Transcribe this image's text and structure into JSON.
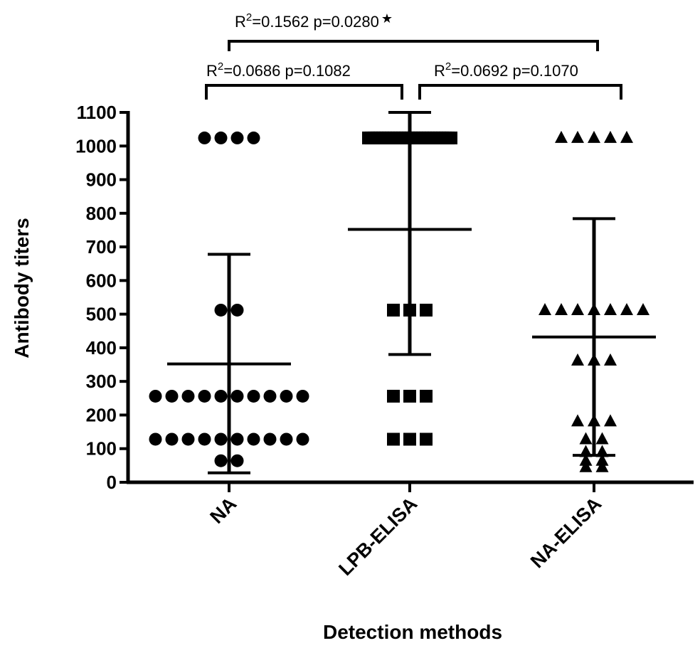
{
  "chart_data": {
    "type": "scatter",
    "xlabel": "Detection methods",
    "ylabel": "Antibody titers",
    "ylim": [
      0,
      1100
    ],
    "yticks": [
      0,
      100,
      200,
      300,
      400,
      500,
      600,
      700,
      800,
      900,
      1000,
      1100
    ],
    "categories": [
      "NA",
      "LPB-ELISA",
      "NA-ELISA"
    ],
    "series": [
      {
        "category": "NA",
        "marker": "circle",
        "points": [
          {
            "value": 1024,
            "count": 4
          },
          {
            "value": 512,
            "count": 2
          },
          {
            "value": 256,
            "count": 10
          },
          {
            "value": 128,
            "count": 10
          },
          {
            "value": 64,
            "count": 2
          }
        ],
        "mean": 352,
        "sd_low": 28,
        "sd_high": 678
      },
      {
        "category": "LPB-ELISA",
        "marker": "square",
        "points": [
          {
            "value": 1024,
            "count": 30
          },
          {
            "value": 512,
            "count": 3
          },
          {
            "value": 256,
            "count": 3
          },
          {
            "value": 128,
            "count": 3
          }
        ],
        "mean": 752,
        "sd_low": 380,
        "sd_high": 1100
      },
      {
        "category": "NA-ELISA",
        "marker": "triangle",
        "points": [
          {
            "value": 1024,
            "count": 5
          },
          {
            "value": 512,
            "count": 7
          },
          {
            "value": 362,
            "count": 3
          },
          {
            "value": 181,
            "count": 3
          },
          {
            "value": 128,
            "count": 2
          },
          {
            "value": 90,
            "count": 2
          },
          {
            "value": 64,
            "count": 2
          },
          {
            "value": 45,
            "count": 2
          }
        ],
        "mean": 432,
        "sd_low": 80,
        "sd_high": 784
      }
    ],
    "annotations": [
      {
        "from": "NA",
        "to": "NA-ELISA",
        "r2_prefix": "R",
        "r2_sup": "2",
        "text": "=0.1562 p=0.0280",
        "mark": "★"
      },
      {
        "from": "NA",
        "to": "LPB-ELISA",
        "r2_prefix": "R",
        "r2_sup": "2",
        "text": "=0.0686 p=0.1082",
        "mark": ""
      },
      {
        "from": "LPB-ELISA",
        "to": "NA-ELISA",
        "r2_prefix": "R",
        "r2_sup": "2",
        "text": "=0.0692 p=0.1070",
        "mark": ""
      }
    ]
  }
}
